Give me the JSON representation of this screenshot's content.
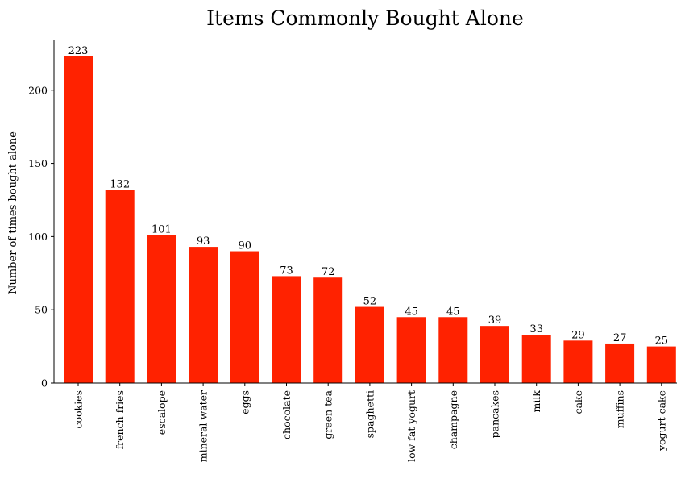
{
  "chart_data": {
    "type": "bar",
    "title": "Items Commonly Bought Alone",
    "xlabel": "",
    "ylabel": "Number of times bought alone",
    "categories": [
      "cookies",
      "french fries",
      "escalope",
      "mineral water",
      "eggs",
      "chocolate",
      "green tea",
      "spaghetti",
      "low fat yogurt",
      "champagne",
      "pancakes",
      "milk",
      "cake",
      "muffins",
      "yogurt cake"
    ],
    "values": [
      223,
      132,
      101,
      93,
      90,
      73,
      72,
      52,
      45,
      45,
      39,
      33,
      29,
      27,
      25
    ],
    "ylim": [
      0,
      234
    ],
    "yticks": [
      0,
      50,
      100,
      150,
      200
    ],
    "bar_color": "#ff2200",
    "grid": false,
    "legend": "none",
    "x_tick_rotation": "vertical"
  }
}
